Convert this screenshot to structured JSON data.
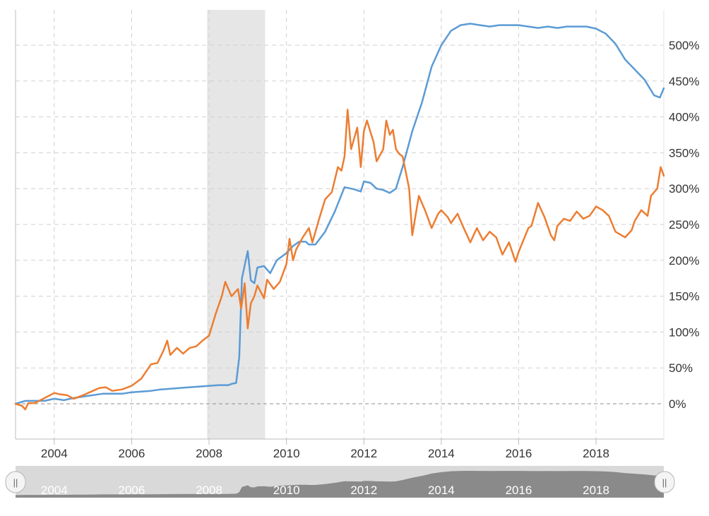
{
  "chart_data": {
    "type": "line",
    "title": "",
    "xlabel": "",
    "ylabel": "",
    "x_range": [
      2003.0,
      2019.75
    ],
    "y_range": [
      -50,
      530
    ],
    "y_ticks": [
      0,
      50,
      100,
      150,
      200,
      250,
      300,
      350,
      400,
      450,
      500
    ],
    "y_tick_labels": [
      "0%",
      "50%",
      "100%",
      "150%",
      "200%",
      "250%",
      "300%",
      "350%",
      "400%",
      "450%",
      "500%"
    ],
    "x_ticks": [
      2004,
      2006,
      2008,
      2010,
      2012,
      2014,
      2016,
      2018
    ],
    "x_tick_labels": [
      "2004",
      "2006",
      "2008",
      "2010",
      "2012",
      "2014",
      "2016",
      "2018"
    ],
    "y_axis_side": "right",
    "grid": true,
    "legend": "none",
    "recession_band": [
      2007.95,
      2009.45
    ],
    "series": [
      {
        "color": "#5b9bd5",
        "points": [
          [
            2003.0,
            0
          ],
          [
            2003.25,
            4
          ],
          [
            2003.5,
            4
          ],
          [
            2003.75,
            4
          ],
          [
            2004.0,
            7
          ],
          [
            2004.25,
            5
          ],
          [
            2004.5,
            8
          ],
          [
            2004.75,
            10
          ],
          [
            2005.0,
            12
          ],
          [
            2005.25,
            14
          ],
          [
            2005.5,
            14
          ],
          [
            2005.75,
            14
          ],
          [
            2006.0,
            16
          ],
          [
            2006.25,
            17
          ],
          [
            2006.5,
            18
          ],
          [
            2006.75,
            20
          ],
          [
            2007.0,
            21
          ],
          [
            2007.25,
            22
          ],
          [
            2007.5,
            23
          ],
          [
            2007.75,
            24
          ],
          [
            2008.0,
            25
          ],
          [
            2008.25,
            26
          ],
          [
            2008.5,
            26
          ],
          [
            2008.6,
            28
          ],
          [
            2008.7,
            29
          ],
          [
            2008.78,
            65
          ],
          [
            2008.85,
            175
          ],
          [
            2009.0,
            213
          ],
          [
            2009.08,
            172
          ],
          [
            2009.17,
            168
          ],
          [
            2009.25,
            190
          ],
          [
            2009.42,
            192
          ],
          [
            2009.58,
            182
          ],
          [
            2009.75,
            200
          ],
          [
            2010.0,
            210
          ],
          [
            2010.17,
            220
          ],
          [
            2010.33,
            226
          ],
          [
            2010.5,
            226
          ],
          [
            2010.58,
            222
          ],
          [
            2010.75,
            222
          ],
          [
            2011.0,
            240
          ],
          [
            2011.25,
            268
          ],
          [
            2011.5,
            302
          ],
          [
            2011.75,
            299
          ],
          [
            2011.92,
            296
          ],
          [
            2012.0,
            310
          ],
          [
            2012.17,
            308
          ],
          [
            2012.33,
            300
          ],
          [
            2012.5,
            298
          ],
          [
            2012.67,
            294
          ],
          [
            2012.83,
            300
          ],
          [
            2013.0,
            330
          ],
          [
            2013.25,
            380
          ],
          [
            2013.5,
            420
          ],
          [
            2013.75,
            470
          ],
          [
            2014.0,
            500
          ],
          [
            2014.25,
            520
          ],
          [
            2014.5,
            528
          ],
          [
            2014.75,
            530
          ],
          [
            2015.0,
            528
          ],
          [
            2015.25,
            526
          ],
          [
            2015.5,
            528
          ],
          [
            2015.75,
            528
          ],
          [
            2016.0,
            528
          ],
          [
            2016.25,
            526
          ],
          [
            2016.5,
            524
          ],
          [
            2016.75,
            526
          ],
          [
            2017.0,
            524
          ],
          [
            2017.25,
            526
          ],
          [
            2017.5,
            526
          ],
          [
            2017.75,
            526
          ],
          [
            2018.0,
            523
          ],
          [
            2018.25,
            516
          ],
          [
            2018.5,
            502
          ],
          [
            2018.75,
            480
          ],
          [
            2019.0,
            466
          ],
          [
            2019.25,
            452
          ],
          [
            2019.5,
            430
          ],
          [
            2019.65,
            427
          ],
          [
            2019.75,
            440
          ]
        ]
      },
      {
        "color": "#ed7d31",
        "points": [
          [
            2003.0,
            0
          ],
          [
            2003.17,
            -3
          ],
          [
            2003.25,
            -8
          ],
          [
            2003.33,
            1
          ],
          [
            2003.5,
            1
          ],
          [
            2003.75,
            8
          ],
          [
            2004.0,
            15
          ],
          [
            2004.17,
            13
          ],
          [
            2004.33,
            12
          ],
          [
            2004.5,
            7
          ],
          [
            2004.75,
            12
          ],
          [
            2005.0,
            18
          ],
          [
            2005.17,
            22
          ],
          [
            2005.33,
            23
          ],
          [
            2005.5,
            18
          ],
          [
            2005.75,
            20
          ],
          [
            2006.0,
            25
          ],
          [
            2006.25,
            35
          ],
          [
            2006.5,
            55
          ],
          [
            2006.67,
            57
          ],
          [
            2006.83,
            75
          ],
          [
            2006.92,
            88
          ],
          [
            2007.0,
            68
          ],
          [
            2007.17,
            78
          ],
          [
            2007.33,
            70
          ],
          [
            2007.5,
            78
          ],
          [
            2007.67,
            80
          ],
          [
            2007.83,
            88
          ],
          [
            2008.0,
            95
          ],
          [
            2008.17,
            125
          ],
          [
            2008.33,
            150
          ],
          [
            2008.42,
            170
          ],
          [
            2008.58,
            150
          ],
          [
            2008.75,
            160
          ],
          [
            2008.83,
            133
          ],
          [
            2008.92,
            168
          ],
          [
            2009.0,
            105
          ],
          [
            2009.08,
            140
          ],
          [
            2009.17,
            150
          ],
          [
            2009.25,
            165
          ],
          [
            2009.42,
            147
          ],
          [
            2009.5,
            173
          ],
          [
            2009.67,
            160
          ],
          [
            2009.83,
            170
          ],
          [
            2010.0,
            195
          ],
          [
            2010.08,
            230
          ],
          [
            2010.17,
            200
          ],
          [
            2010.25,
            215
          ],
          [
            2010.42,
            232
          ],
          [
            2010.58,
            245
          ],
          [
            2010.67,
            225
          ],
          [
            2010.83,
            255
          ],
          [
            2011.0,
            285
          ],
          [
            2011.17,
            295
          ],
          [
            2011.33,
            330
          ],
          [
            2011.42,
            325
          ],
          [
            2011.5,
            345
          ],
          [
            2011.58,
            410
          ],
          [
            2011.67,
            355
          ],
          [
            2011.83,
            385
          ],
          [
            2011.92,
            330
          ],
          [
            2012.0,
            380
          ],
          [
            2012.08,
            395
          ],
          [
            2012.25,
            365
          ],
          [
            2012.33,
            338
          ],
          [
            2012.5,
            355
          ],
          [
            2012.58,
            395
          ],
          [
            2012.67,
            375
          ],
          [
            2012.75,
            382
          ],
          [
            2012.83,
            355
          ],
          [
            2012.92,
            348
          ],
          [
            2013.0,
            345
          ],
          [
            2013.17,
            300
          ],
          [
            2013.25,
            235
          ],
          [
            2013.42,
            290
          ],
          [
            2013.58,
            270
          ],
          [
            2013.75,
            245
          ],
          [
            2013.92,
            265
          ],
          [
            2014.0,
            270
          ],
          [
            2014.17,
            260
          ],
          [
            2014.25,
            252
          ],
          [
            2014.42,
            265
          ],
          [
            2014.58,
            245
          ],
          [
            2014.75,
            225
          ],
          [
            2014.92,
            245
          ],
          [
            2015.08,
            228
          ],
          [
            2015.25,
            240
          ],
          [
            2015.42,
            232
          ],
          [
            2015.58,
            208
          ],
          [
            2015.75,
            225
          ],
          [
            2015.92,
            198
          ],
          [
            2016.0,
            212
          ],
          [
            2016.25,
            245
          ],
          [
            2016.33,
            248
          ],
          [
            2016.5,
            280
          ],
          [
            2016.67,
            260
          ],
          [
            2016.83,
            235
          ],
          [
            2016.92,
            228
          ],
          [
            2017.0,
            248
          ],
          [
            2017.17,
            258
          ],
          [
            2017.33,
            255
          ],
          [
            2017.5,
            268
          ],
          [
            2017.67,
            258
          ],
          [
            2017.83,
            262
          ],
          [
            2018.0,
            275
          ],
          [
            2018.17,
            270
          ],
          [
            2018.33,
            262
          ],
          [
            2018.5,
            240
          ],
          [
            2018.75,
            232
          ],
          [
            2018.92,
            242
          ],
          [
            2019.0,
            255
          ],
          [
            2019.17,
            270
          ],
          [
            2019.33,
            262
          ],
          [
            2019.42,
            290
          ],
          [
            2019.58,
            300
          ],
          [
            2019.67,
            330
          ],
          [
            2019.75,
            318
          ]
        ]
      }
    ]
  },
  "navigator": {
    "year_labels": [
      "2004",
      "2006",
      "2008",
      "2010",
      "2012",
      "2014",
      "2016",
      "2018"
    ],
    "left_handle_glyph": "||",
    "right_handle_glyph": "||"
  }
}
